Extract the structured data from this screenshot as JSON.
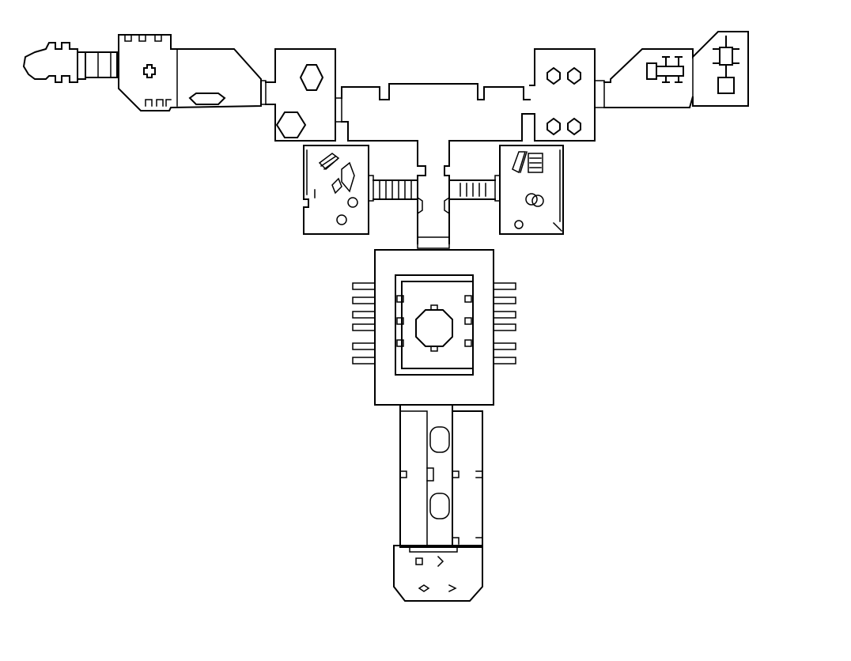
{
  "map": {
    "style": "monochrome line-art floor plan",
    "colors": {
      "background": "#ffffff",
      "line": "#000000"
    },
    "regions": [
      {
        "id": "west-wing",
        "features": [
          "round-room",
          "cross-symbol",
          "oval-pad",
          "pillars"
        ]
      },
      {
        "id": "hexagon-room",
        "features": [
          "hexagon",
          "hexagon"
        ]
      },
      {
        "id": "central-corridor"
      },
      {
        "id": "octagon-room",
        "features": [
          "octagon",
          "octagon",
          "octagon",
          "octagon"
        ]
      },
      {
        "id": "east-wing",
        "features": [
          "dumbbell-symbol",
          "pillar-symbol",
          "square-block"
        ]
      },
      {
        "id": "west-debris-room",
        "features": [
          "rubble",
          "rings"
        ]
      },
      {
        "id": "east-debris-room",
        "features": [
          "rubble",
          "rings"
        ]
      },
      {
        "id": "central-hall",
        "features": [
          "ribbed-sides",
          "inner-court",
          "octagon-hub"
        ]
      },
      {
        "id": "south-corridors",
        "features": [
          "twin-halls",
          "capsule-niches"
        ]
      },
      {
        "id": "south-terminal",
        "features": [
          "beveled-room",
          "small-symbols"
        ]
      }
    ]
  }
}
